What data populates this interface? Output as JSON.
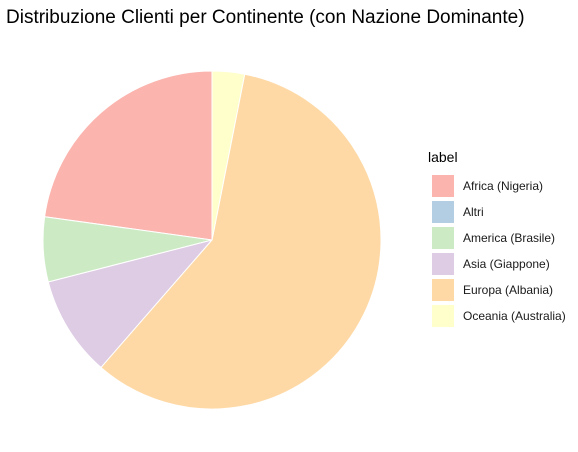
{
  "chart_data": {
    "type": "pie",
    "title": "Distribuzione Clienti per Continente (con Nazione Dominante)",
    "legend_title": "label",
    "legend_position": "right",
    "slices": [
      {
        "label": "Africa (Nigeria)",
        "value": 22.8,
        "color": "#FBB4AE"
      },
      {
        "label": "Altri",
        "value": 0,
        "color": "#B3CDE3"
      },
      {
        "label": "America (Brasile)",
        "value": 6.2,
        "color": "#CCEBC5"
      },
      {
        "label": "Asia (Giappone)",
        "value": 9.6,
        "color": "#DECBE4"
      },
      {
        "label": "Europa (Albania)",
        "value": 58.3,
        "color": "#FED9A6"
      },
      {
        "label": "Oceania (Australia)",
        "value": 3.1,
        "color": "#FFFFCC"
      }
    ]
  }
}
